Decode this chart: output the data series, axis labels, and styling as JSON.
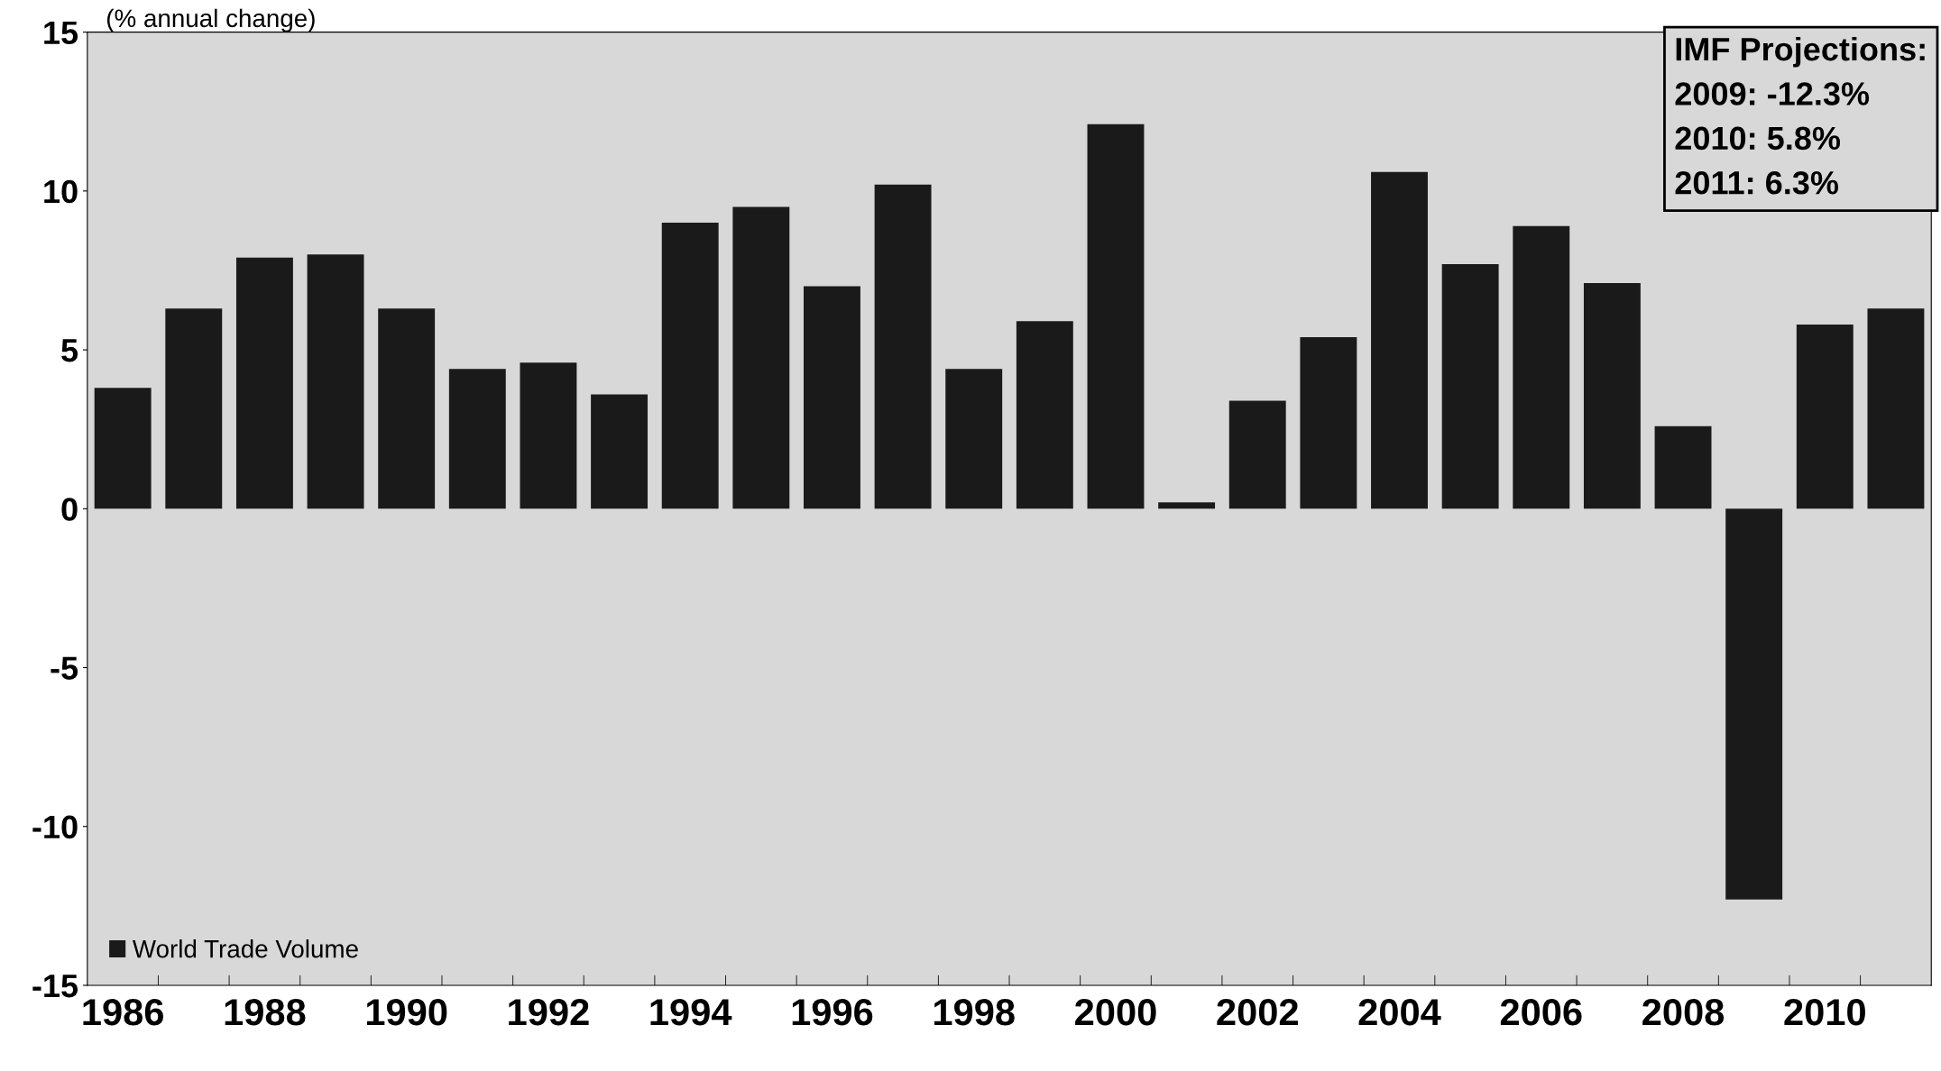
{
  "chart_data": {
    "type": "bar",
    "ylabel": "(% annual change)",
    "categories": [
      "1986",
      null,
      "1988",
      null,
      "1990",
      null,
      "1992",
      null,
      "1994",
      null,
      "1996",
      null,
      "1998",
      null,
      "2000",
      null,
      "2002",
      null,
      "2004",
      null,
      "2006",
      null,
      "2008",
      null,
      "2010",
      null
    ],
    "series": [
      {
        "name": "World Trade Volume",
        "color": "#1a1a1a",
        "values": [
          3.8,
          6.3,
          7.9,
          8.0,
          6.3,
          4.4,
          4.6,
          3.6,
          9.0,
          9.5,
          7.0,
          10.2,
          4.4,
          5.9,
          12.1,
          0.2,
          3.4,
          5.4,
          10.6,
          7.7,
          8.9,
          7.1,
          2.6,
          -12.3,
          5.8,
          6.3
        ]
      }
    ],
    "ylim": [
      -15,
      15
    ],
    "yticks": [
      -15,
      -10,
      -5,
      0,
      5,
      10,
      15
    ],
    "annotations": [
      "IMF Projections:\n2009: -12.3%\n2010: 5.8%\n2011: 6.3%"
    ],
    "legend": "bottom left",
    "grid": false
  }
}
